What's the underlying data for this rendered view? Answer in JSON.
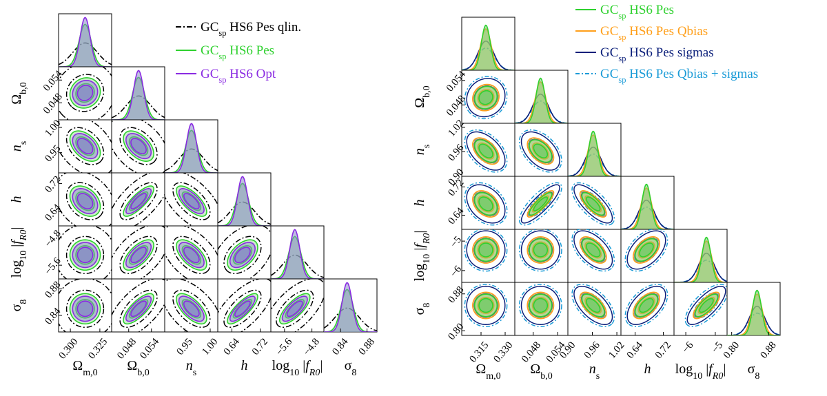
{
  "chart_data": [
    {
      "type": "corner",
      "title": "",
      "parameters": [
        {
          "id": "Om",
          "label": "Ωm,0",
          "tex_main": "Ω",
          "tex_sub": "m,0",
          "mean": 0.3125,
          "range": [
            0.29,
            0.335
          ],
          "ticks": [
            "0.300",
            "0.325"
          ],
          "tick_values": [
            0.3,
            0.325
          ]
        },
        {
          "id": "Ob",
          "label": "Ωb,0",
          "tex_main": "Ω",
          "tex_sub": "b,0",
          "mean": 0.0506,
          "range": [
            0.0435,
            0.0575
          ],
          "ticks": [
            "0.048",
            "0.054"
          ],
          "tick_values": [
            0.048,
            0.054
          ]
        },
        {
          "id": "ns",
          "label": "ns",
          "tex_main": "n",
          "tex_sub": "s",
          "mean": 0.963,
          "range": [
            0.91,
            1.015
          ],
          "ticks": [
            "0.95",
            "1.00"
          ],
          "tick_values": [
            0.95,
            1.0
          ]
        },
        {
          "id": "h",
          "label": "h",
          "tex_main": "h",
          "tex_sub": "",
          "mean": 0.67,
          "range": [
            0.6,
            0.75
          ],
          "ticks": [
            "0.64",
            "0.72"
          ],
          "tick_values": [
            0.64,
            0.72
          ]
        },
        {
          "id": "fR0",
          "label": "log10 |fR0|",
          "tex_main": "log₁₀|f",
          "tex_sub": "R0",
          "tex_tail": "|",
          "mean": -5.3,
          "range": [
            -6.0,
            -4.45
          ],
          "ticks": [
            "−5.6",
            "−4.8"
          ],
          "tick_values": [
            -5.6,
            -4.8
          ]
        },
        {
          "id": "s8",
          "label": "σ8",
          "tex_main": "σ",
          "tex_sub": "8",
          "mean": 0.85,
          "range": [
            0.815,
            0.895
          ],
          "ticks": [
            "0.84",
            "0.88"
          ],
          "tick_values": [
            0.84,
            0.88
          ]
        }
      ],
      "series": [
        {
          "name": "GCsp HS6 Pes qlin.",
          "legend_main": "GC",
          "legend_sub": "sp",
          "legend_rest": " HS6 Pes qlin.",
          "color": "#000000",
          "dash": "8,3,2,3",
          "filled": false,
          "width_scale": 2.3,
          "corr_scale": 0.85,
          "peak": 0.45
        },
        {
          "name": "GCsp HS6 Pes",
          "legend_main": "GC",
          "legend_sub": "sp",
          "legend_rest": " HS6 Pes",
          "color": "#2fd12f",
          "dash": "",
          "filled": true,
          "fill": "#8fd08f",
          "width_scale": 1.15,
          "corr_scale": 1.0,
          "peak": 0.8
        },
        {
          "name": "GCsp HS6 Opt",
          "legend_main": "GC",
          "legend_sub": "sp",
          "legend_rest": " HS6 Opt",
          "color": "#8a2be2",
          "dash": "",
          "filled": true,
          "fill": "#8a8acb",
          "width_scale": 0.95,
          "corr_scale": 1.0,
          "peak": 0.93
        }
      ],
      "correlations": {
        "Ob-Om": 0.1,
        "ns-Om": -0.45,
        "ns-Ob": -0.5,
        "h-Om": -0.35,
        "h-Ob": 0.8,
        "h-ns": -0.7,
        "fR0-Om": 0.0,
        "fR0-Ob": 0.65,
        "fR0-ns": -0.6,
        "fR0-h": 0.5,
        "s8-Om": 0.0,
        "s8-Ob": 0.75,
        "s8-ns": -0.65,
        "s8-h": 0.8,
        "s8-fR0": 0.75
      }
    },
    {
      "type": "corner",
      "title": "",
      "parameters": [
        {
          "id": "Om",
          "label": "Ωm,0",
          "tex_main": "Ω",
          "tex_sub": "m,0",
          "mean": 0.318,
          "range": [
            0.303,
            0.336
          ],
          "ticks": [
            "0.315",
            "0.330"
          ],
          "tick_values": [
            0.315,
            0.33
          ]
        },
        {
          "id": "Ob",
          "label": "Ωb,0",
          "tex_main": "Ω",
          "tex_sub": "b,0",
          "mean": 0.0498,
          "range": [
            0.0435,
            0.0565
          ],
          "ticks": [
            "0.048",
            "0.054"
          ],
          "tick_values": [
            0.048,
            0.054
          ]
        },
        {
          "id": "ns",
          "label": "ns",
          "tex_main": "n",
          "tex_sub": "s",
          "mean": 0.962,
          "range": [
            0.9,
            1.03
          ],
          "ticks": [
            "0.90",
            "0.96",
            "1.02"
          ],
          "tick_values": [
            0.9,
            0.96,
            1.02
          ]
        },
        {
          "id": "h",
          "label": "h",
          "tex_main": "h",
          "tex_sub": "",
          "mean": 0.672,
          "range": [
            0.6,
            0.75
          ],
          "ticks": [
            "0.64",
            "0.72"
          ],
          "tick_values": [
            0.64,
            0.72
          ]
        },
        {
          "id": "fR0",
          "label": "log10 |fR0|",
          "tex_main": "log₁₀|f",
          "tex_sub": "R0",
          "tex_tail": "|",
          "mean": -5.3,
          "range": [
            -6.4,
            -4.6
          ],
          "ticks": [
            "−6",
            "−5"
          ],
          "tick_values": [
            -6.0,
            -5.0
          ]
        },
        {
          "id": "s8",
          "label": "σ8",
          "tex_main": "σ",
          "tex_sub": "8",
          "mean": 0.855,
          "range": [
            0.79,
            0.905
          ],
          "ticks": [
            "0.80",
            "0.88"
          ],
          "tick_values": [
            0.8,
            0.88
          ]
        }
      ],
      "series": [
        {
          "name": "GCsp HS6 Pes",
          "legend_main": "GC",
          "legend_sub": "sp",
          "legend_rest": " HS6 Pes",
          "color": "#2fd12f",
          "dash": "",
          "filled": true,
          "fill": "#6fcf6f",
          "width_scale": 0.85,
          "corr_scale": 1.0,
          "peak": 0.85
        },
        {
          "name": "GCsp HS6 Pes Qbias",
          "legend_main": "GC",
          "legend_sub": "sp",
          "legend_rest": " HS6 Pes Qbias",
          "color": "#ff9f1a",
          "dash": "",
          "filled": true,
          "fill": "#e0b060",
          "width_scale": 1.0,
          "corr_scale": 1.0,
          "peak": 0.78
        },
        {
          "name": "GCsp HS6 Pes sigmas",
          "legend_main": "GC",
          "legend_sub": "sp",
          "legend_rest": " HS6 Pes sigmas",
          "color": "#0b1f7a",
          "dash": "",
          "filled": false,
          "width_scale": 1.45,
          "corr_scale": 1.0,
          "peak": 0.55
        },
        {
          "name": "GCsp HS6 Pes Qbias + sigmas",
          "legend_main": "GC",
          "legend_sub": "sp",
          "legend_rest": " HS6 Pes Qbias + sigmas",
          "color": "#1a9bd7",
          "dash": "6,3,2,3",
          "filled": false,
          "width_scale": 1.6,
          "corr_scale": 0.9,
          "peak": 0.42
        }
      ],
      "correlations": {
        "Ob-Om": 0.1,
        "ns-Om": -0.5,
        "ns-Ob": -0.5,
        "h-Om": -0.35,
        "h-Ob": 0.85,
        "h-ns": -0.75,
        "fR0-Om": 0.0,
        "fR0-Ob": 0.0,
        "fR0-ns": -0.55,
        "fR0-h": 0.5,
        "s8-Om": 0.0,
        "s8-Ob": 0.0,
        "s8-ns": -0.6,
        "s8-h": 0.55,
        "s8-fR0": 0.75
      }
    }
  ]
}
